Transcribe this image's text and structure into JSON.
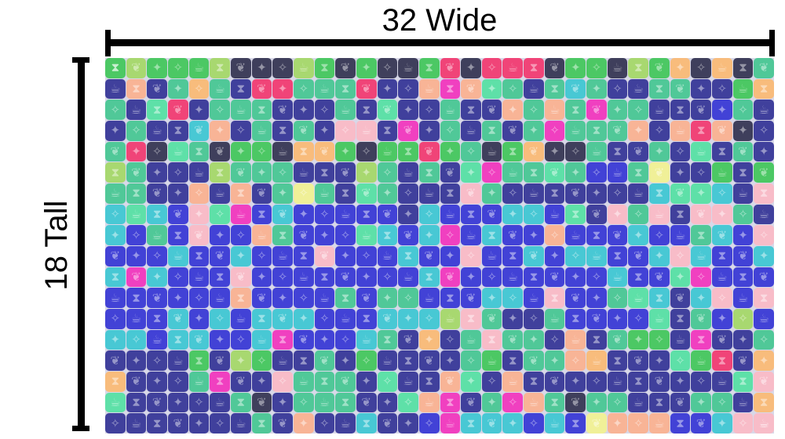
{
  "labels": {
    "width_label": "32 Wide",
    "height_label": "18 Tall"
  },
  "grid": {
    "columns": 32,
    "rows": 18,
    "palette": {
      "G": "#4cc864",
      "Gl": "#a8d870",
      "D": "#3f3f5c",
      "N": "#40409c",
      "P": "#f04478",
      "Pe": "#f8b496",
      "T": "#50c898",
      "M": "#5ee0a8",
      "B": "#4242d6",
      "C": "#48c8d4",
      "Pk": "#f8bcc8",
      "Y": "#f0f098",
      "O": "#f8bc7c",
      "Mg": "#f040c0"
    },
    "glyph_map": {
      "bowtie": "⧗",
      "bird": "✦",
      "cup": "☕",
      "leaf": "❦",
      "star": "✧"
    },
    "cells": [
      [
        "G",
        "Gl",
        "G",
        "G",
        "G",
        "Gl",
        "D",
        "D",
        "D",
        "Gl",
        "G",
        "D",
        "G",
        "D",
        "D",
        "G",
        "P",
        "D",
        "P",
        "P",
        "P",
        "D",
        "G",
        "G",
        "D",
        "Gl",
        "G",
        "O",
        "D",
        "O",
        "D",
        "T"
      ],
      [
        "N",
        "Pe",
        "N",
        "T",
        "O",
        "T",
        "N",
        "P",
        "P",
        "T",
        "T",
        "T",
        "P",
        "N",
        "N",
        "Pe",
        "Mg",
        "Pe",
        "M",
        "T",
        "N",
        "T",
        "C",
        "T",
        "N",
        "N",
        "T",
        "T",
        "N",
        "N",
        "G",
        "O"
      ],
      [
        "T",
        "N",
        "M",
        "P",
        "N",
        "T",
        "T",
        "T",
        "N",
        "N",
        "N",
        "T",
        "N",
        "M",
        "N",
        "N",
        "T",
        "N",
        "N",
        "Pe",
        "T",
        "Pe",
        "T",
        "Mg",
        "T",
        "T",
        "N",
        "N",
        "N",
        "B",
        "T",
        "N"
      ],
      [
        "N",
        "T",
        "N",
        "N",
        "C",
        "Pe",
        "N",
        "T",
        "N",
        "T",
        "N",
        "Pk",
        "Pk",
        "N",
        "Mg",
        "N",
        "T",
        "N",
        "T",
        "N",
        "T",
        "Mg",
        "T",
        "T",
        "T",
        "Pe",
        "N",
        "Pe",
        "P",
        "Pe",
        "D",
        "N"
      ],
      [
        "T",
        "P",
        "D",
        "M",
        "T",
        "D",
        "G",
        "G",
        "D",
        "O",
        "O",
        "G",
        "D",
        "G",
        "G",
        "P",
        "G",
        "T",
        "D",
        "G",
        "O",
        "D",
        "D",
        "T",
        "N",
        "N",
        "T",
        "N",
        "M",
        "N",
        "T",
        "N"
      ],
      [
        "Gl",
        "T",
        "N",
        "N",
        "N",
        "Gl",
        "T",
        "T",
        "T",
        "N",
        "N",
        "N",
        "Gl",
        "T",
        "N",
        "T",
        "N",
        "M",
        "Mg",
        "T",
        "T",
        "M",
        "T",
        "B",
        "B",
        "T",
        "Y",
        "N",
        "N",
        "G",
        "N",
        "G"
      ],
      [
        "T",
        "T",
        "N",
        "N",
        "Pe",
        "N",
        "Pe",
        "N",
        "T",
        "Y",
        "T",
        "N",
        "M",
        "T",
        "N",
        "N",
        "N",
        "Pk",
        "T",
        "N",
        "N",
        "N",
        "N",
        "N",
        "N",
        "N",
        "C",
        "M",
        "M",
        "C",
        "N",
        "Pk"
      ],
      [
        "C",
        "M",
        "C",
        "B",
        "Pk",
        "M",
        "Mg",
        "B",
        "C",
        "B",
        "B",
        "B",
        "B",
        "B",
        "N",
        "C",
        "B",
        "B",
        "B",
        "C",
        "C",
        "B",
        "M",
        "N",
        "Pk",
        "T",
        "Pk",
        "N",
        "Pk",
        "Pk",
        "T",
        "N"
      ],
      [
        "C",
        "B",
        "T",
        "B",
        "Pk",
        "B",
        "B",
        "Pe",
        "T",
        "B",
        "B",
        "B",
        "M",
        "C",
        "B",
        "C",
        "Mg",
        "B",
        "C",
        "B",
        "B",
        "Pe",
        "B",
        "B",
        "B",
        "C",
        "B",
        "B",
        "T",
        "C",
        "B",
        "Pk"
      ],
      [
        "B",
        "B",
        "B",
        "C",
        "B",
        "B",
        "C",
        "B",
        "B",
        "B",
        "Pk",
        "B",
        "B",
        "B",
        "C",
        "B",
        "B",
        "Pk",
        "B",
        "B",
        "C",
        "B",
        "C",
        "C",
        "B",
        "B",
        "C",
        "Pk",
        "C",
        "B",
        "B",
        "C"
      ],
      [
        "C",
        "Mg",
        "C",
        "B",
        "B",
        "B",
        "Pk",
        "B",
        "B",
        "B",
        "B",
        "B",
        "B",
        "B",
        "B",
        "C",
        "Mg",
        "B",
        "B",
        "B",
        "B",
        "B",
        "B",
        "B",
        "C",
        "B",
        "B",
        "M",
        "Mg",
        "B",
        "B",
        "B"
      ],
      [
        "B",
        "B",
        "B",
        "B",
        "B",
        "B",
        "Pe",
        "B",
        "B",
        "B",
        "B",
        "T",
        "B",
        "T",
        "T",
        "B",
        "B",
        "B",
        "C",
        "C",
        "B",
        "Pk",
        "B",
        "B",
        "T",
        "M",
        "C",
        "N",
        "C",
        "Pk",
        "B",
        "Pk"
      ],
      [
        "B",
        "B",
        "B",
        "C",
        "B",
        "C",
        "B",
        "C",
        "C",
        "C",
        "B",
        "B",
        "B",
        "C",
        "C",
        "C",
        "Gl",
        "Pk",
        "T",
        "N",
        "N",
        "T",
        "B",
        "B",
        "B",
        "B",
        "M",
        "N",
        "T",
        "B",
        "Gl",
        "B"
      ],
      [
        "C",
        "C",
        "B",
        "C",
        "C",
        "B",
        "B",
        "C",
        "Mg",
        "B",
        "B",
        "B",
        "C",
        "T",
        "N",
        "O",
        "N",
        "T",
        "Pk",
        "T",
        "T",
        "N",
        "Pe",
        "N",
        "T",
        "G",
        "G",
        "N",
        "Mg",
        "N",
        "N",
        "T"
      ],
      [
        "N",
        "N",
        "N",
        "N",
        "G",
        "N",
        "Gl",
        "G",
        "N",
        "N",
        "T",
        "N",
        "G",
        "N",
        "N",
        "N",
        "N",
        "T",
        "G",
        "N",
        "T",
        "T",
        "Pe",
        "O",
        "N",
        "N",
        "N",
        "M",
        "G",
        "P",
        "N",
        "O"
      ],
      [
        "O",
        "N",
        "N",
        "N",
        "T",
        "Mg",
        "N",
        "N",
        "Pk",
        "T",
        "T",
        "T",
        "N",
        "M",
        "N",
        "N",
        "Pe",
        "M",
        "N",
        "Pe",
        "N",
        "N",
        "N",
        "N",
        "N",
        "N",
        "N",
        "N",
        "N",
        "N",
        "M",
        "Pk"
      ],
      [
        "M",
        "N",
        "N",
        "N",
        "N",
        "N",
        "T",
        "D",
        "N",
        "T",
        "T",
        "T",
        "N",
        "N",
        "M",
        "Pe",
        "Mg",
        "N",
        "T",
        "Mg",
        "Pe",
        "T",
        "D",
        "T",
        "T",
        "N",
        "N",
        "N",
        "T",
        "T",
        "N",
        "O"
      ],
      [
        "N",
        "N",
        "N",
        "N",
        "N",
        "N",
        "N",
        "T",
        "N",
        "Pe",
        "N",
        "N",
        "C",
        "N",
        "N",
        "B",
        "Mg",
        "C",
        "C",
        "C",
        "B",
        "C",
        "B",
        "Y",
        "Pe",
        "Pe",
        "Pe",
        "B",
        "B",
        "C",
        "Pk",
        "Pk"
      ]
    ]
  }
}
